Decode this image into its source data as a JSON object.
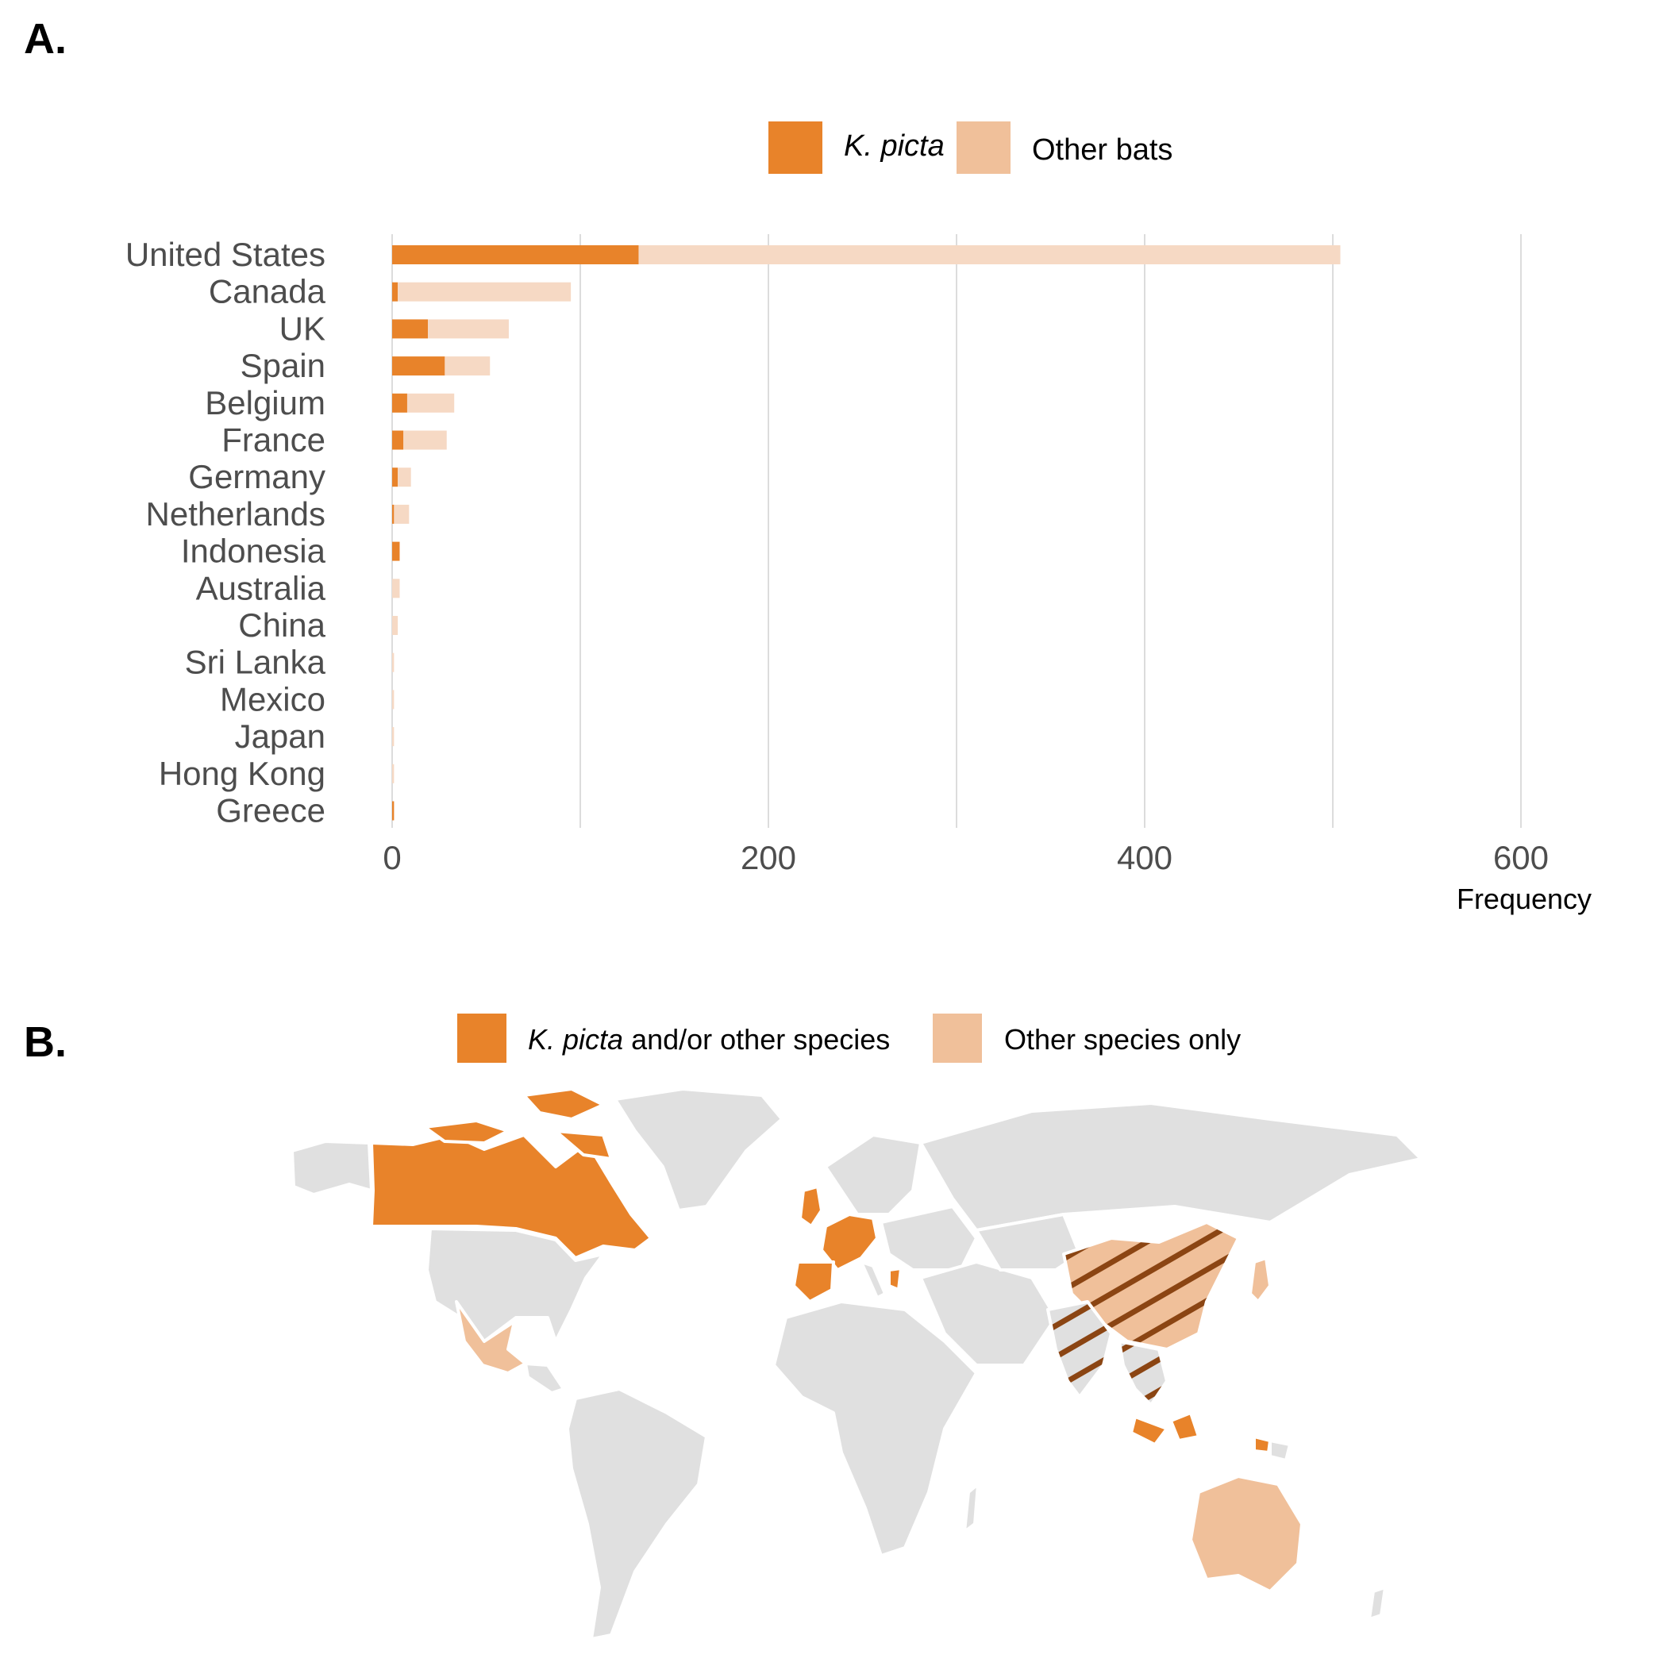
{
  "panel_labels": {
    "a": "A.",
    "b": "B."
  },
  "colors": {
    "kpicta": "#E8832A",
    "other": "#F0C09A",
    "other_bar": "#F6D9C4",
    "land": "#E0E0E0",
    "grid": "#D0D0D0",
    "hatch": "#8B4513"
  },
  "chart_data": [
    {
      "type": "bar",
      "orientation": "horizontal",
      "stacked": true,
      "categories": [
        "United States",
        "Canada",
        "UK",
        "Spain",
        "Belgium",
        "France",
        "Germany",
        "Netherlands",
        "Indonesia",
        "Australia",
        "China",
        "Sri Lanka",
        "Mexico",
        "Japan",
        "Hong Kong",
        "Greece"
      ],
      "series": [
        {
          "name_italic": "K. picta",
          "values": [
            131,
            3,
            19,
            28,
            8,
            6,
            3,
            1,
            4,
            0,
            0,
            0,
            0,
            0,
            0,
            1
          ]
        },
        {
          "name": "Other bats",
          "values": [
            373,
            92,
            43,
            24,
            25,
            23,
            7,
            8,
            0,
            4,
            3,
            1,
            1,
            1,
            1,
            0
          ]
        }
      ],
      "xlabel": "Frequency",
      "xlim": [
        0,
        600
      ],
      "xticks": [
        0,
        200,
        400,
        600
      ],
      "grid": true,
      "legend_position": "top"
    },
    {
      "type": "map",
      "legend": [
        {
          "italic": "K. picta",
          "rest": " and/or other species"
        },
        {
          "label": "Other species only"
        }
      ],
      "regions_kpicta": [
        "Canada",
        "United Kingdom",
        "Belgium",
        "Netherlands",
        "France",
        "Germany",
        "Spain",
        "Greece",
        "Indonesia"
      ],
      "regions_other_only": [
        "Mexico",
        "Australia",
        "Japan"
      ],
      "regions_hatched": [
        "China",
        "India",
        "Myanmar",
        "Thailand",
        "Vietnam",
        "Laos",
        "Cambodia"
      ]
    }
  ]
}
